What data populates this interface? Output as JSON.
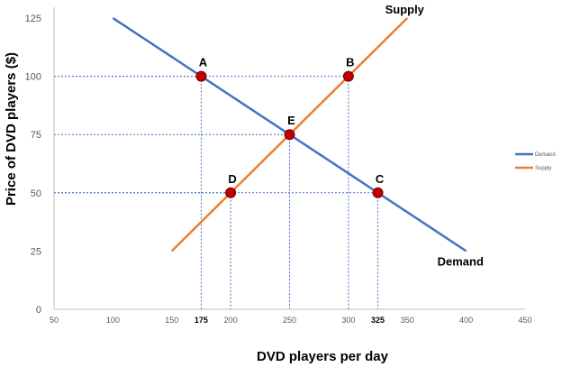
{
  "chart_data": {
    "type": "line",
    "xlabel": "DVD players per day",
    "ylabel": "Price of DVD players ($)",
    "xlim": [
      50,
      450
    ],
    "ylim": [
      0,
      125
    ],
    "x_ticks": [
      50,
      100,
      150,
      200,
      250,
      300,
      350,
      400,
      450
    ],
    "y_ticks": [
      0,
      25,
      50,
      75,
      100,
      125
    ],
    "bold_x_ticks": [
      175,
      325
    ],
    "grid": false,
    "legend_position": "right",
    "series": [
      {
        "name": "Demand",
        "color": "#4472C4",
        "x": [
          100,
          400
        ],
        "y": [
          125,
          25
        ],
        "end_label": "Demand"
      },
      {
        "name": "Supply",
        "color": "#ED7D31",
        "x": [
          150,
          350
        ],
        "y": [
          25,
          125
        ],
        "end_label": "Supply"
      }
    ],
    "points": [
      {
        "label": "A",
        "x": 175,
        "y": 100
      },
      {
        "label": "B",
        "x": 300,
        "y": 100
      },
      {
        "label": "E",
        "x": 250,
        "y": 75
      },
      {
        "label": "D",
        "x": 200,
        "y": 50
      },
      {
        "label": "C",
        "x": 325,
        "y": 50
      }
    ],
    "point_color": "#C00000",
    "guide_color": "#4472C4"
  }
}
